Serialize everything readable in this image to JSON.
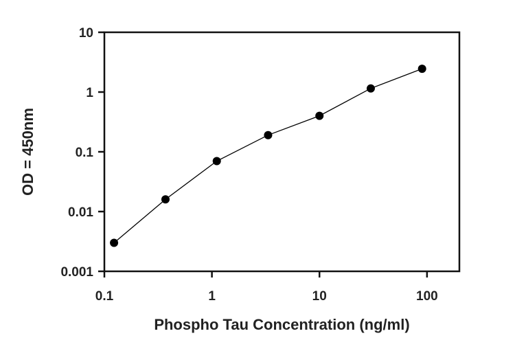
{
  "chart_data": {
    "type": "line",
    "xlabel": "Phospho Tau Concentration (ng/ml)",
    "ylabel": "OD = 450nm",
    "x_scale": "log",
    "y_scale": "log",
    "xlim": [
      0.1,
      200
    ],
    "ylim": [
      0.001,
      10
    ],
    "x_ticks": [
      {
        "value": 0.1,
        "label": "0.1"
      },
      {
        "value": 1,
        "label": "1"
      },
      {
        "value": 10,
        "label": "10"
      },
      {
        "value": 100,
        "label": "100"
      }
    ],
    "y_ticks": [
      {
        "value": 0.001,
        "label": "0.001"
      },
      {
        "value": 0.01,
        "label": "0.01"
      },
      {
        "value": 0.1,
        "label": "0.1"
      },
      {
        "value": 1,
        "label": "1"
      },
      {
        "value": 10,
        "label": "10"
      }
    ],
    "grid": false,
    "legend": "none",
    "series": [
      {
        "color": "#000000",
        "marker": "filled-circle",
        "x": [
          0.123,
          0.37,
          1.11,
          3.33,
          10,
          30,
          90
        ],
        "y": [
          0.003,
          0.016,
          0.07,
          0.19,
          0.4,
          1.15,
          2.45
        ]
      }
    ]
  }
}
